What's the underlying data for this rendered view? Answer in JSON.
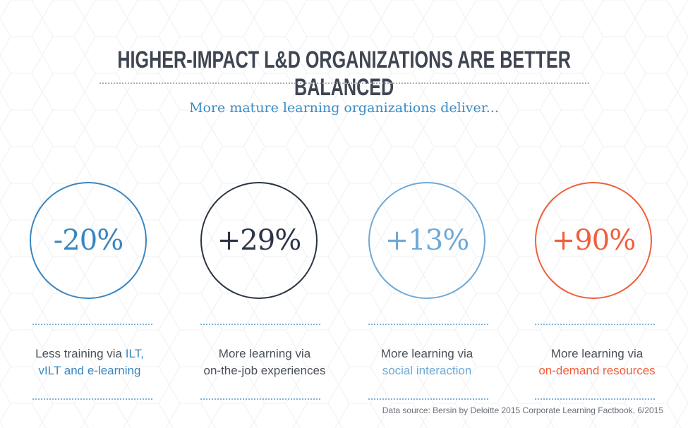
{
  "title": "HIGHER-IMPACT L&D ORGANIZATIONS ARE BETTER BALANCED",
  "subtitle": "More mature learning organizations deliver...",
  "stats": [
    {
      "value": "-20%",
      "color": "#3a86bf",
      "caption_line1_plain": "Less training via ",
      "caption_line1_highlight": "ILT,",
      "caption_line2_plain": "",
      "caption_line2_highlight": "vILT and e-learning",
      "highlight_color": "#3a86bf"
    },
    {
      "value": "+29%",
      "color": "#2a3444",
      "caption_line1_plain": "More learning via",
      "caption_line1_highlight": "",
      "caption_line2_plain": "on-the-job experiences",
      "caption_line2_highlight": "",
      "highlight_color": "#2a3444"
    },
    {
      "value": "+13%",
      "color": "#6fa9d6",
      "caption_line1_plain": "More learning via",
      "caption_line1_highlight": "",
      "caption_line2_plain": "",
      "caption_line2_highlight": "social interaction",
      "highlight_color": "#6fa9d6"
    },
    {
      "value": "+90%",
      "color": "#ef5f3c",
      "caption_line1_plain": "More learning via",
      "caption_line1_highlight": "",
      "caption_line2_plain": "",
      "caption_line2_highlight": "on-demand resources",
      "highlight_color": "#ef5f3c"
    }
  ],
  "source": "Data source: Bersin by Deloitte 2015 Corporate Learning Factbook, 6/2015"
}
